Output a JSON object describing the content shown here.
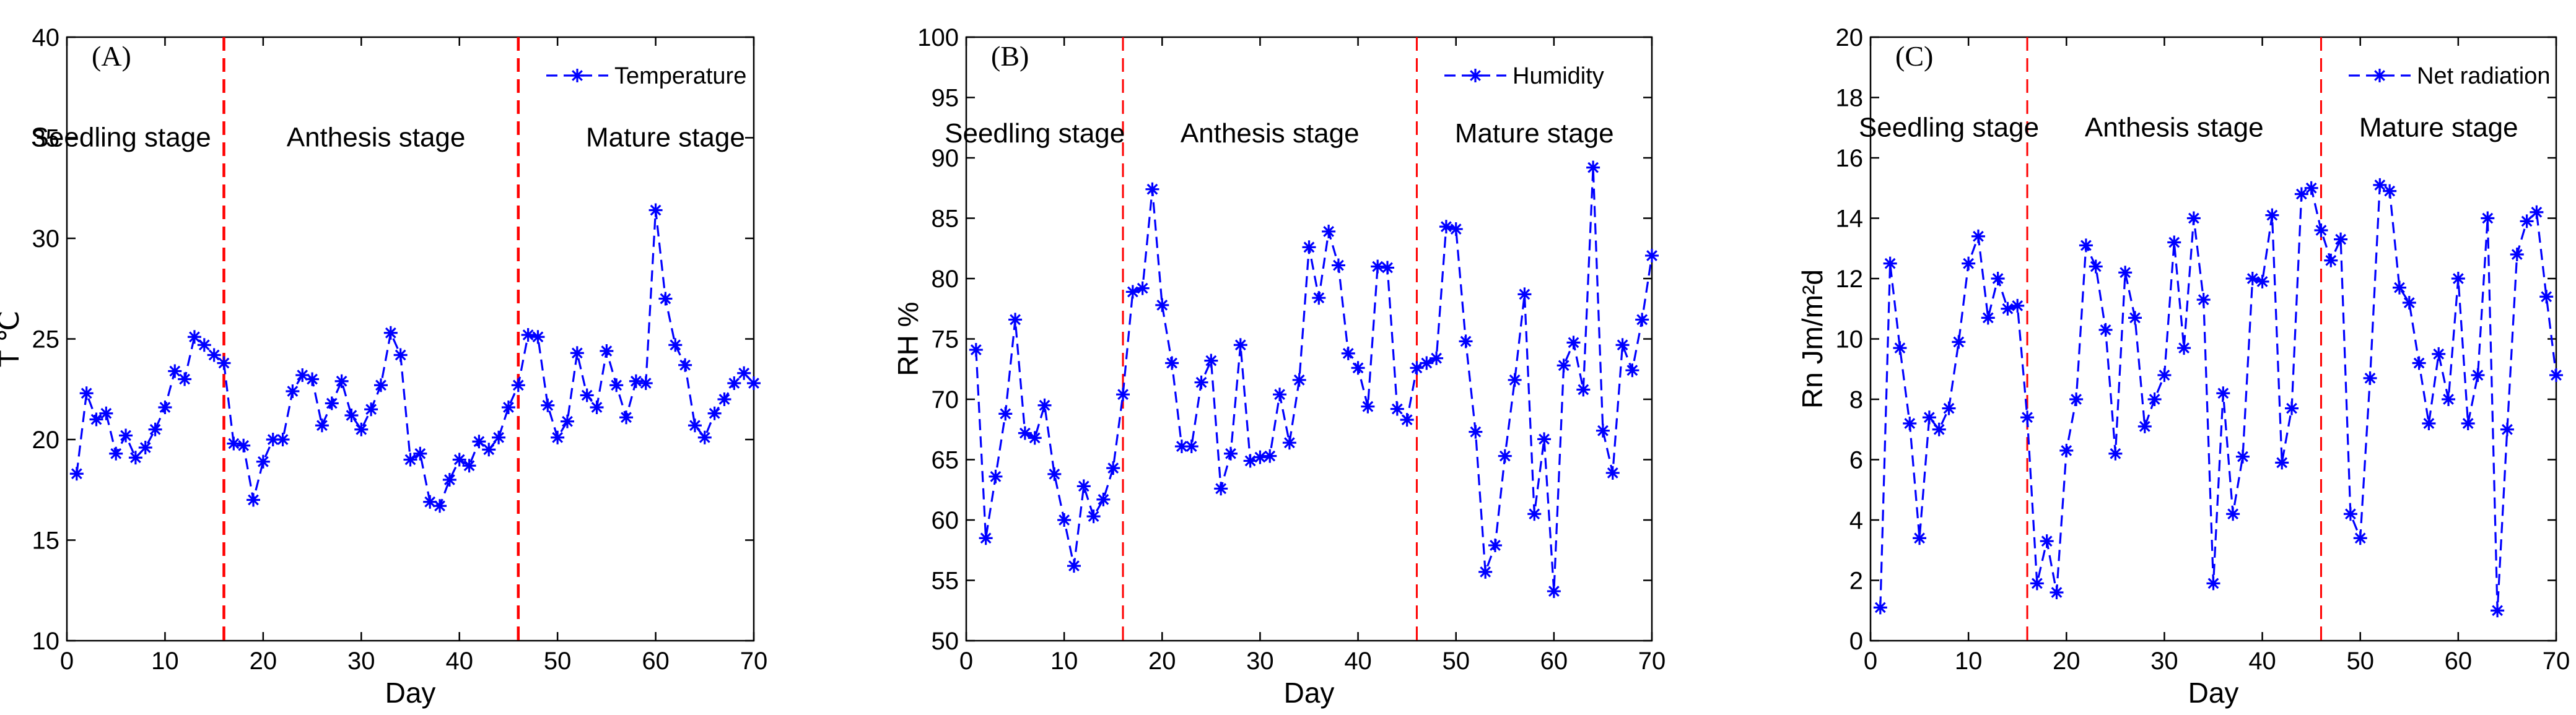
{
  "colors": {
    "series": "#0000ff",
    "stage_line": "#ff0000",
    "axes": "#000000",
    "background": "#ffffff"
  },
  "chart_data": [
    {
      "type": "line",
      "panel": "(A)",
      "xlabel": "Day",
      "ylabel": "T ℃",
      "xlim": [
        0,
        70
      ],
      "ylim": [
        10,
        40
      ],
      "xticks": [
        0,
        10,
        20,
        30,
        40,
        50,
        60,
        70
      ],
      "yticks": [
        10,
        15,
        20,
        25,
        30,
        35,
        40
      ],
      "legend": "Temperature",
      "legend_position": "top-right",
      "stage_lines": [
        16,
        46
      ],
      "stages": [
        {
          "label": "Seedling stage",
          "x": 5.5,
          "y": 35
        },
        {
          "label": "Anthesis stage",
          "x": 31.5,
          "y": 35
        },
        {
          "label": "Mature stage",
          "x": 61,
          "y": 35
        }
      ],
      "series": [
        {
          "name": "Temperature",
          "x": [
            1,
            2,
            3,
            4,
            5,
            6,
            7,
            8,
            9,
            10,
            11,
            12,
            13,
            14,
            15,
            16,
            17,
            18,
            19,
            20,
            21,
            22,
            23,
            24,
            25,
            26,
            27,
            28,
            29,
            30,
            31,
            32,
            33,
            34,
            35,
            36,
            37,
            38,
            39,
            40,
            41,
            42,
            43,
            44,
            45,
            46,
            47,
            48,
            49,
            50,
            51,
            52,
            53,
            54,
            55,
            56,
            57,
            58,
            59,
            60,
            61,
            62,
            63,
            64,
            65,
            66,
            67,
            68,
            69,
            70
          ],
          "values": [
            18.3,
            22.3,
            21.0,
            21.3,
            19.3,
            20.2,
            19.1,
            19.6,
            20.5,
            21.6,
            23.4,
            23.0,
            25.1,
            24.7,
            24.2,
            23.8,
            19.8,
            19.7,
            17.0,
            18.9,
            20.0,
            20.0,
            22.4,
            23.2,
            23.0,
            20.7,
            21.8,
            22.9,
            21.2,
            20.5,
            21.5,
            22.7,
            25.3,
            24.2,
            19.0,
            19.3,
            16.9,
            16.7,
            18.0,
            19.0,
            18.7,
            19.9,
            19.5,
            20.1,
            21.6,
            22.7,
            25.2,
            25.1,
            21.7,
            20.1,
            20.9,
            24.3,
            22.2,
            21.6,
            24.4,
            22.7,
            21.1,
            22.9,
            22.8,
            31.4,
            27.0,
            24.7,
            23.7,
            20.7,
            20.1,
            21.3,
            22.0,
            22.8,
            23.3,
            22.8
          ]
        }
      ]
    },
    {
      "type": "line",
      "panel": "(B)",
      "xlabel": "Day",
      "ylabel": "RH  %",
      "xlim": [
        0,
        70
      ],
      "ylim": [
        50,
        100
      ],
      "xticks": [
        0,
        10,
        20,
        30,
        40,
        50,
        60,
        70
      ],
      "yticks": [
        50,
        55,
        60,
        65,
        70,
        75,
        80,
        85,
        90,
        95,
        100
      ],
      "legend": "Humidity",
      "legend_position": "top-right",
      "stage_lines": [
        16,
        46
      ],
      "stages": [
        {
          "label": "Seedling stage",
          "x": 7,
          "y": 92
        },
        {
          "label": "Anthesis stage",
          "x": 31,
          "y": 92
        },
        {
          "label": "Mature stage",
          "x": 58,
          "y": 92
        }
      ],
      "series": [
        {
          "name": "Humidity",
          "x": [
            1,
            2,
            3,
            4,
            5,
            6,
            7,
            8,
            9,
            10,
            11,
            12,
            13,
            14,
            15,
            16,
            17,
            18,
            19,
            20,
            21,
            22,
            23,
            24,
            25,
            26,
            27,
            28,
            29,
            30,
            31,
            32,
            33,
            34,
            35,
            36,
            37,
            38,
            39,
            40,
            41,
            42,
            43,
            44,
            45,
            46,
            47,
            48,
            49,
            50,
            51,
            52,
            53,
            54,
            55,
            56,
            57,
            58,
            59,
            60,
            61,
            62,
            63,
            64,
            65,
            66,
            67,
            68,
            69,
            70
          ],
          "values": [
            74.1,
            58.5,
            63.6,
            68.8,
            76.6,
            67.2,
            66.8,
            69.5,
            63.8,
            60.0,
            56.2,
            62.8,
            60.3,
            61.7,
            64.3,
            70.4,
            78.9,
            79.2,
            87.4,
            77.8,
            73.0,
            66.1,
            66.1,
            71.4,
            73.2,
            62.6,
            65.5,
            74.5,
            64.9,
            65.2,
            65.3,
            70.4,
            66.4,
            71.6,
            82.6,
            78.4,
            83.9,
            81.1,
            73.8,
            72.6,
            69.4,
            81.0,
            80.9,
            69.2,
            68.3,
            72.6,
            73.0,
            73.4,
            84.3,
            84.1,
            74.8,
            67.3,
            55.7,
            57.9,
            65.3,
            71.6,
            78.7,
            60.5,
            66.7,
            54.1,
            72.8,
            74.7,
            70.8,
            89.2,
            67.4,
            63.9,
            74.5,
            72.4,
            76.6,
            81.9
          ]
        }
      ]
    },
    {
      "type": "line",
      "panel": "(C)",
      "xlabel": "Day",
      "ylabel": "Rn Jm/m²d",
      "xlim": [
        0,
        70
      ],
      "ylim": [
        0,
        20
      ],
      "xticks": [
        0,
        10,
        20,
        30,
        40,
        50,
        60,
        70
      ],
      "yticks": [
        0,
        2,
        4,
        6,
        8,
        10,
        12,
        14,
        16,
        18,
        20
      ],
      "legend": "Net radiation",
      "legend_position": "top-right",
      "stage_lines": [
        16,
        46
      ],
      "stages": [
        {
          "label": "Seedling stage",
          "x": 8,
          "y": 17
        },
        {
          "label": "Anthesis stage",
          "x": 31,
          "y": 17
        },
        {
          "label": "Mature stage",
          "x": 58,
          "y": 17
        }
      ],
      "series": [
        {
          "name": "Net radiation",
          "x": [
            1,
            2,
            3,
            4,
            5,
            6,
            7,
            8,
            9,
            10,
            11,
            12,
            13,
            14,
            15,
            16,
            17,
            18,
            19,
            20,
            21,
            22,
            23,
            24,
            25,
            26,
            27,
            28,
            29,
            30,
            31,
            32,
            33,
            34,
            35,
            36,
            37,
            38,
            39,
            40,
            41,
            42,
            43,
            44,
            45,
            46,
            47,
            48,
            49,
            50,
            51,
            52,
            53,
            54,
            55,
            56,
            57,
            58,
            59,
            60,
            61,
            62,
            63,
            64,
            65,
            66,
            67,
            68,
            69,
            70
          ],
          "values": [
            1.1,
            12.5,
            9.7,
            7.2,
            3.4,
            7.4,
            7.0,
            7.7,
            9.9,
            12.5,
            13.4,
            10.7,
            12.0,
            11.0,
            11.1,
            7.4,
            1.9,
            3.3,
            1.6,
            6.3,
            8.0,
            13.1,
            12.4,
            10.3,
            6.2,
            12.2,
            10.7,
            7.1,
            8.0,
            8.8,
            13.2,
            9.7,
            14.0,
            11.3,
            1.9,
            8.2,
            4.2,
            6.1,
            12.0,
            11.9,
            14.1,
            5.9,
            7.7,
            14.8,
            15.0,
            13.6,
            12.6,
            13.3,
            4.2,
            3.4,
            8.7,
            15.1,
            14.9,
            11.7,
            11.2,
            9.2,
            7.2,
            9.5,
            8.0,
            12.0,
            7.2,
            8.8,
            14.0,
            1.0,
            7.0,
            12.8,
            13.9,
            14.2,
            11.4,
            8.8
          ]
        }
      ]
    }
  ]
}
